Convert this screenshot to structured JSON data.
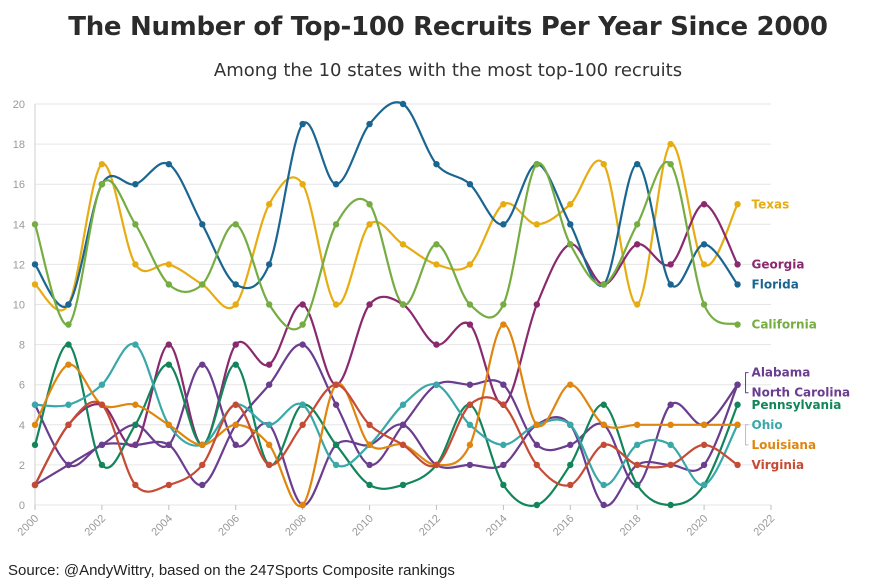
{
  "chart_data": {
    "type": "line",
    "title": "The Number of Top-100 Recruits Per Year Since 2000",
    "subtitle": "Among the 10 states with the most top-100 recruits",
    "source": "Source: @AndyWittry, based on the 247Sports Composite rankings",
    "xlabel": "",
    "ylabel": "",
    "xlim": [
      2000,
      2022
    ],
    "ylim": [
      0,
      20
    ],
    "x_ticks": [
      2000,
      2002,
      2004,
      2006,
      2008,
      2010,
      2012,
      2014,
      2016,
      2018,
      2020,
      2022
    ],
    "y_ticks": [
      0,
      2,
      4,
      6,
      8,
      10,
      12,
      14,
      16,
      18,
      20
    ],
    "grid": "horizontal",
    "legend": "direct labels at right end of lines",
    "x": [
      2000,
      2001,
      2002,
      2003,
      2004,
      2005,
      2006,
      2007,
      2008,
      2009,
      2010,
      2011,
      2012,
      2013,
      2014,
      2015,
      2016,
      2017,
      2018,
      2019,
      2020,
      2021
    ],
    "series": [
      {
        "name": "Texas",
        "color": "#e6ac12",
        "values": [
          11,
          10,
          17,
          12,
          12,
          11,
          10,
          15,
          16,
          10,
          14,
          13,
          12,
          12,
          15,
          14,
          15,
          17,
          10,
          18,
          12,
          15
        ]
      },
      {
        "name": "Georgia",
        "color": "#8a2a6e",
        "values": [
          1,
          4,
          5,
          3,
          8,
          3,
          8,
          7,
          10,
          6,
          10,
          10,
          8,
          9,
          5,
          10,
          13,
          11,
          13,
          12,
          15,
          12
        ]
      },
      {
        "name": "Florida",
        "color": "#1b6691",
        "values": [
          12,
          10,
          16,
          16,
          17,
          14,
          11,
          12,
          19,
          16,
          19,
          20,
          17,
          16,
          14,
          17,
          14,
          11,
          17,
          11,
          13,
          11
        ]
      },
      {
        "name": "California",
        "color": "#76ad43",
        "values": [
          14,
          9,
          16,
          14,
          11,
          11,
          14,
          10,
          9,
          14,
          15,
          10,
          13,
          10,
          10,
          17,
          13,
          11,
          14,
          17,
          10,
          9
        ]
      },
      {
        "name": "Alabama",
        "color": "#6a3d8f",
        "values": [
          5,
          2,
          3,
          3,
          3,
          1,
          4,
          6,
          8,
          5,
          2,
          4,
          6,
          6,
          6,
          3,
          3,
          4,
          1,
          5,
          4,
          6
        ]
      },
      {
        "name": "North Carolina",
        "color": "#6a3d8f",
        "values": [
          1,
          2,
          3,
          4,
          3,
          7,
          3,
          4,
          0,
          3,
          3,
          4,
          2,
          2,
          2,
          4,
          4,
          0,
          2,
          2,
          2,
          6
        ]
      },
      {
        "name": "Pennsylvania",
        "color": "#12855a",
        "values": [
          3,
          8,
          2,
          4,
          7,
          3,
          7,
          2,
          5,
          3,
          1,
          1,
          2,
          5,
          1,
          0,
          2,
          5,
          1,
          0,
          1,
          5
        ]
      },
      {
        "name": "Ohio",
        "color": "#3aa8a8",
        "values": [
          5,
          5,
          6,
          8,
          4,
          3,
          5,
          4,
          5,
          2,
          3,
          5,
          6,
          4,
          3,
          4,
          4,
          1,
          3,
          3,
          1,
          4
        ]
      },
      {
        "name": "Louisiana",
        "color": "#e0860f",
        "values": [
          4,
          7,
          5,
          5,
          4,
          3,
          4,
          3,
          0,
          6,
          3,
          3,
          2,
          3,
          9,
          4,
          6,
          4,
          4,
          4,
          4,
          4
        ]
      },
      {
        "name": "Virginia",
        "color": "#c64b35",
        "values": [
          1,
          4,
          5,
          1,
          1,
          2,
          5,
          2,
          4,
          6,
          4,
          3,
          2,
          5,
          5,
          2,
          1,
          3,
          2,
          2,
          3,
          2
        ]
      }
    ],
    "end_labels": [
      {
        "series": "Texas",
        "text": "Texas",
        "color": "#e6ac12",
        "label_y": 15
      },
      {
        "series": "Georgia",
        "text": "Georgia",
        "color": "#8a2a6e",
        "label_y": 12
      },
      {
        "series": "Florida",
        "text": "Florida",
        "color": "#1b6691",
        "label_y": 11
      },
      {
        "series": "California",
        "text": "California",
        "color": "#76ad43",
        "label_y": 9
      },
      {
        "series": "Alabama",
        "text": "Alabama",
        "color": "#6a3d8f",
        "label_y": 6.6
      },
      {
        "series": "North Carolina",
        "text": "North Carolina",
        "color": "#6a3d8f",
        "label_y": 5.6
      },
      {
        "series": "Pennsylvania",
        "text": "Pennsylvania",
        "color": "#12855a",
        "label_y": 5
      },
      {
        "series": "Ohio",
        "text": "Ohio",
        "color": "#3aa8a8",
        "label_y": 4
      },
      {
        "series": "Louisiana",
        "text": "Louisiana",
        "color": "#e0860f",
        "label_y": 3
      },
      {
        "series": "Virginia",
        "text": "Virginia",
        "color": "#c64b35",
        "label_y": 2
      }
    ]
  }
}
